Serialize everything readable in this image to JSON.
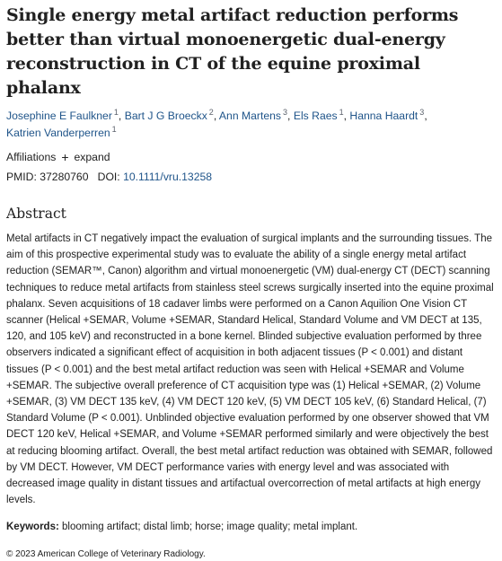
{
  "article": {
    "title": "Single energy metal artifact reduction performs better than virtual monoenergetic dual-energy reconstruction in CT of the equine proximal phalanx",
    "authors": [
      {
        "name": "Josephine E Faulkner",
        "affil": "1"
      },
      {
        "name": "Bart J G Broeckx",
        "affil": "2"
      },
      {
        "name": "Ann Martens",
        "affil": "3"
      },
      {
        "name": "Els Raes",
        "affil": "1"
      },
      {
        "name": "Hanna Haardt",
        "affil": "3"
      },
      {
        "name": "Katrien Vanderperren",
        "affil": "1"
      }
    ],
    "affiliations_label": "Affiliations",
    "expand_label": "expand",
    "pmid_label": "PMID: 37280760",
    "doi_label": "DOI:",
    "doi_value": "10.1111/vru.13258",
    "abstract_heading": "Abstract",
    "abstract_text": "Metal artifacts in CT negatively impact the evaluation of surgical implants and the surrounding tissues. The aim of this prospective experimental study was to evaluate the ability of a single energy metal artifact reduction (SEMAR™, Canon) algorithm and virtual monoenergetic (VM) dual-energy CT (DECT) scanning techniques to reduce metal artifacts from stainless steel screws surgically inserted into the equine proximal phalanx. Seven acquisitions of 18 cadaver limbs were performed on a Canon Aquilion One Vision CT scanner (Helical +SEMAR, Volume +SEMAR, Standard Helical, Standard Volume and VM DECT at 135, 120, and 105 keV) and reconstructed in a bone kernel. Blinded subjective evaluation performed by three observers indicated a significant effect of acquisition in both adjacent tissues (P < 0.001) and distant tissues (P < 0.001) and the best metal artifact reduction was seen with Helical +SEMAR and Volume +SEMAR. The subjective overall preference of CT acquisition type was (1) Helical +SEMAR, (2) Volume +SEMAR, (3) VM DECT 135 keV, (4) VM DECT 120 keV, (5) VM DECT 105 keV, (6) Standard Helical, (7) Standard Volume (P < 0.001). Unblinded objective evaluation performed by one observer showed that VM DECT 120 keV, Helical +SEMAR, and Volume +SEMAR performed similarly and were objectively the best at reducing blooming artifact. Overall, the best metal artifact reduction was obtained with SEMAR, followed by VM DECT. However, VM DECT performance varies with energy level and was associated with decreased image quality in distant tissues and artifactual overcorrection of metal artifacts at high energy levels.",
    "keywords_label": "Keywords:",
    "keywords_text": "blooming artifact; distal limb; horse; image quality; metal implant.",
    "copyright": "© 2023 American College of Veterinary Radiology."
  },
  "colors": {
    "link": "#20558a",
    "text": "#212121"
  },
  "icons": {
    "expand": "plus-icon"
  }
}
